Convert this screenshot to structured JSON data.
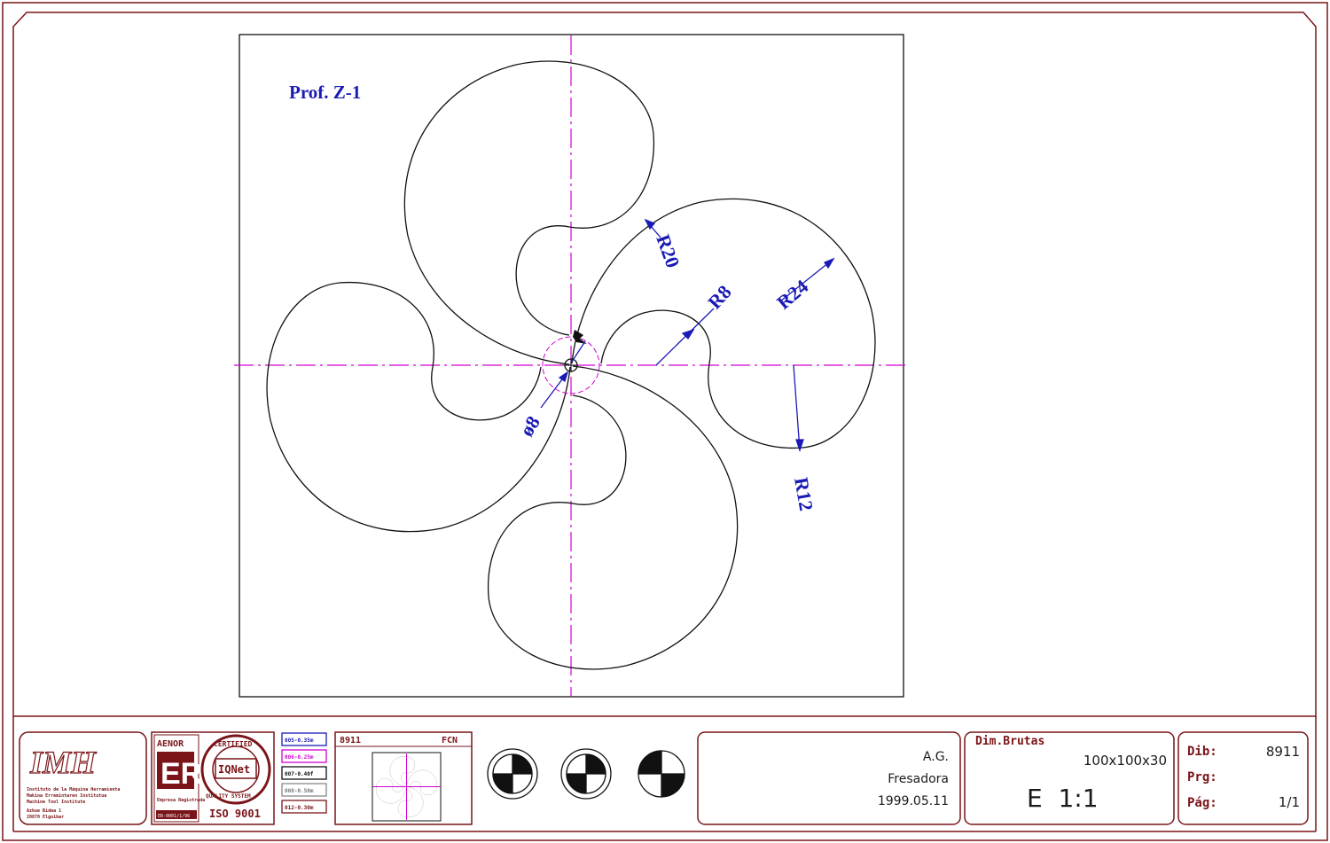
{
  "drawing": {
    "profile_label": "Prof. Z-1",
    "dimensions": {
      "r20": "R20",
      "r8": "R8",
      "r24": "R24",
      "r12": "R12",
      "d8": "ø8"
    }
  },
  "title_block": {
    "logo": {
      "monogram": "IMH",
      "lines": [
        "Instituto de la Máquina Herramienta",
        "Makina Erremintaren Institutua",
        "Machine Tool Institute",
        "Azkue Bidea 1",
        "20870 Elgoibar"
      ]
    },
    "aenor": {
      "title": "AENOR",
      "mark": "ER",
      "caption": "Empresa Registrada",
      "code": "ER-0001/1/96"
    },
    "iqnet": {
      "top": "CERTIFIED",
      "center": "IQNet",
      "bottom": "QUALITY SYSTEM",
      "standard": "ISO 9001"
    },
    "pen_legend": [
      "005-0.35m",
      "006-0.25m",
      "007-0.40f",
      "008-0.50m",
      "012-0.30m"
    ],
    "thumbnail": {
      "number": "8911",
      "code": "FCN"
    },
    "author": "A.G.",
    "machine": "Fresadora",
    "date": "1999.05.11",
    "dims_label": "Dim.Brutas",
    "dims_value": "100x100x30",
    "scale": "E  1:1",
    "dib_label": "Dib:",
    "dib_value": "8911",
    "prg_label": "Prg:",
    "prg_value": "",
    "pag_label": "Pág:",
    "pag_value": "1/1"
  },
  "colors": {
    "frame": "#7a1418",
    "dimension": "#1a1ab5",
    "centerline": "#d200d2",
    "outline": "#111111"
  }
}
